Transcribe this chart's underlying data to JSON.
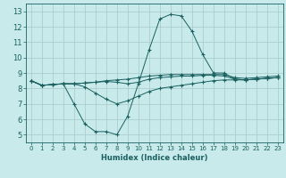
{
  "title": "",
  "xlabel": "Humidex (Indice chaleur)",
  "ylabel": "",
  "bg_color": "#c8eaea",
  "grid_color": "#a8c8c8",
  "line_color": "#1a6060",
  "xlim": [
    -0.5,
    23.5
  ],
  "ylim": [
    4.5,
    13.5
  ],
  "xticks": [
    0,
    1,
    2,
    3,
    4,
    5,
    6,
    7,
    8,
    9,
    10,
    11,
    12,
    13,
    14,
    15,
    16,
    17,
    18,
    19,
    20,
    21,
    22,
    23
  ],
  "yticks": [
    5,
    6,
    7,
    8,
    9,
    10,
    11,
    12,
    13
  ],
  "line1_x": [
    0,
    1,
    2,
    3,
    4,
    5,
    6,
    7,
    8,
    9,
    10,
    11,
    12,
    13,
    14,
    15,
    16,
    17,
    18,
    19,
    20,
    21,
    22,
    23
  ],
  "line1_y": [
    8.5,
    8.2,
    8.25,
    8.3,
    8.3,
    8.35,
    8.4,
    8.45,
    8.4,
    8.3,
    8.4,
    8.6,
    8.7,
    8.75,
    8.8,
    8.8,
    8.85,
    8.85,
    8.8,
    8.6,
    8.55,
    8.6,
    8.65,
    8.7
  ],
  "line2_x": [
    0,
    1,
    2,
    3,
    4,
    5,
    6,
    7,
    8,
    9,
    10,
    11,
    12,
    13,
    14,
    15,
    16,
    17,
    18,
    19,
    20,
    21,
    22,
    23
  ],
  "line2_y": [
    8.5,
    8.2,
    8.25,
    8.3,
    7.0,
    5.7,
    5.2,
    5.2,
    5.0,
    6.2,
    8.3,
    10.5,
    12.5,
    12.8,
    12.7,
    11.7,
    10.2,
    9.0,
    9.0,
    8.6,
    8.55,
    8.6,
    8.65,
    8.7
  ],
  "line3_x": [
    0,
    1,
    2,
    3,
    4,
    5,
    6,
    7,
    8,
    9,
    10,
    11,
    12,
    13,
    14,
    15,
    16,
    17,
    18,
    19,
    20,
    21,
    22,
    23
  ],
  "line3_y": [
    8.5,
    8.2,
    8.25,
    8.3,
    8.3,
    8.35,
    8.4,
    8.5,
    8.55,
    8.6,
    8.7,
    8.8,
    8.85,
    8.9,
    8.9,
    8.9,
    8.9,
    8.9,
    8.9,
    8.7,
    8.65,
    8.7,
    8.75,
    8.8
  ],
  "line4_x": [
    0,
    1,
    2,
    3,
    4,
    5,
    6,
    7,
    8,
    9,
    10,
    11,
    12,
    13,
    14,
    15,
    16,
    17,
    18,
    19,
    20,
    21,
    22,
    23
  ],
  "line4_y": [
    8.5,
    8.2,
    8.25,
    8.3,
    8.3,
    8.1,
    7.7,
    7.3,
    7.0,
    7.2,
    7.5,
    7.8,
    8.0,
    8.1,
    8.2,
    8.3,
    8.4,
    8.5,
    8.55,
    8.55,
    8.55,
    8.6,
    8.65,
    8.7
  ],
  "xlabel_fontsize": 6,
  "tick_fontsize": 5
}
